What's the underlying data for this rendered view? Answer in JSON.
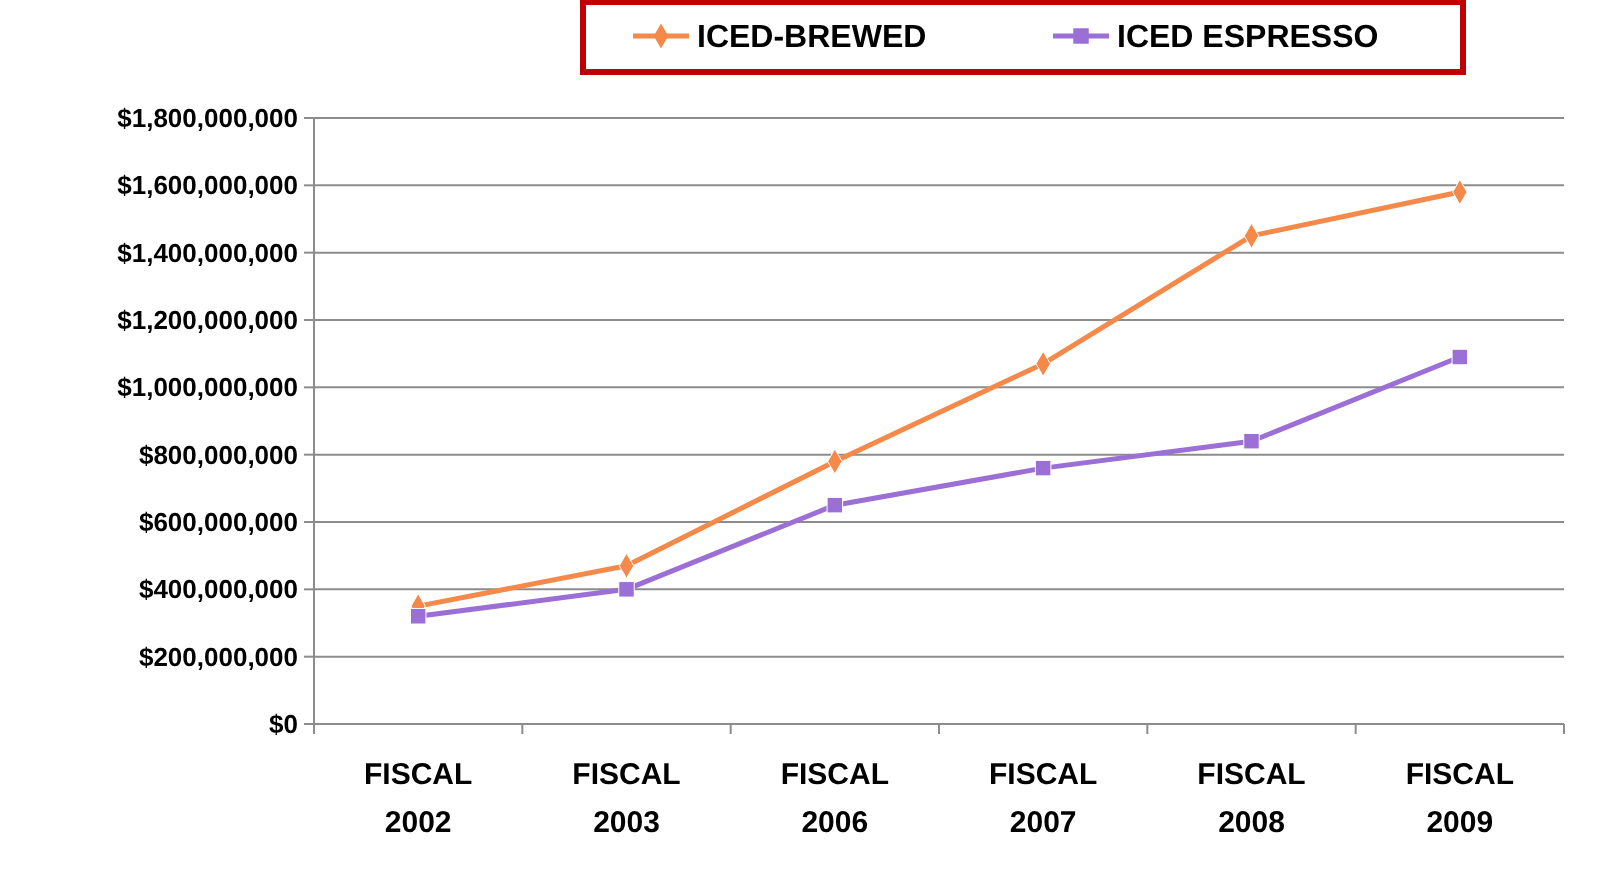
{
  "chart_data": {
    "type": "line",
    "categories": [
      "FISCAL 2002",
      "FISCAL 2003",
      "FISCAL 2006",
      "FISCAL 2007",
      "FISCAL 2008",
      "FISCAL 2009"
    ],
    "series": [
      {
        "name": "ICED-BREWED",
        "color": "#f4894a",
        "marker": "diamond",
        "values": [
          350000000,
          470000000,
          780000000,
          1070000000,
          1450000000,
          1580000000
        ]
      },
      {
        "name": "ICED ESPRESSO",
        "color": "#9b6fd6",
        "marker": "square",
        "values": [
          320000000,
          400000000,
          650000000,
          760000000,
          840000000,
          1090000000
        ]
      }
    ],
    "ylim": [
      0,
      1800000000
    ],
    "yticks": [
      {
        "value": 0,
        "label": "$0"
      },
      {
        "value": 200000000,
        "label": "$200,000,000"
      },
      {
        "value": 400000000,
        "label": "$400,000,000"
      },
      {
        "value": 600000000,
        "label": "$600,000,000"
      },
      {
        "value": 800000000,
        "label": "$800,000,000"
      },
      {
        "value": 1000000000,
        "label": "$1,000,000,000"
      },
      {
        "value": 1200000000,
        "label": "$1,200,000,000"
      },
      {
        "value": 1400000000,
        "label": "$1,400,000,000"
      },
      {
        "value": 1600000000,
        "label": "$1,600,000,000"
      },
      {
        "value": 1800000000,
        "label": "$1,800,000,000"
      }
    ],
    "grid": "y",
    "legend": "top",
    "line_style": "solid"
  }
}
